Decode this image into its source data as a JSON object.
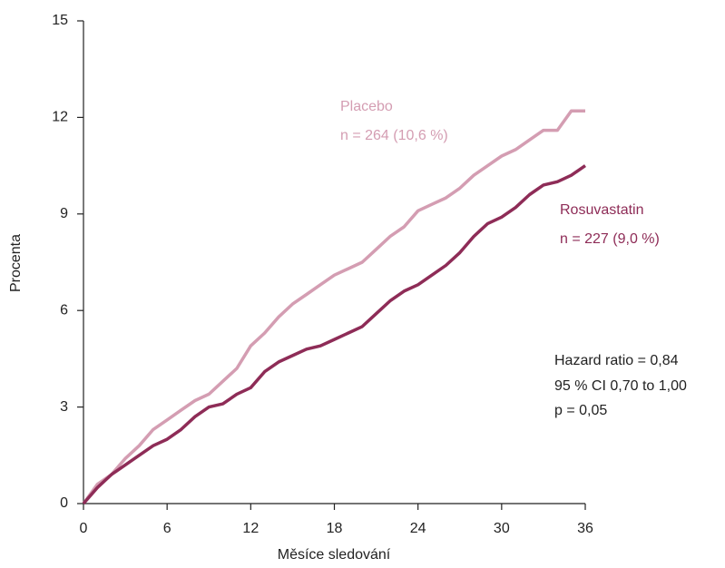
{
  "chart_data": {
    "type": "line",
    "x": [
      0,
      1,
      2,
      3,
      4,
      5,
      6,
      7,
      8,
      9,
      10,
      11,
      12,
      13,
      14,
      15,
      16,
      17,
      18,
      19,
      20,
      21,
      22,
      23,
      24,
      25,
      26,
      27,
      28,
      29,
      30,
      31,
      32,
      33,
      34,
      35,
      36
    ],
    "series": [
      {
        "name": "Placebo",
        "label": "n = 264 (10,6 %)",
        "color": "#d49db2",
        "values": [
          0,
          0.6,
          0.9,
          1.4,
          1.8,
          2.3,
          2.6,
          2.9,
          3.2,
          3.4,
          3.8,
          4.2,
          4.9,
          5.3,
          5.8,
          6.2,
          6.5,
          6.8,
          7.1,
          7.3,
          7.5,
          7.9,
          8.3,
          8.6,
          9.1,
          9.3,
          9.5,
          9.8,
          10.2,
          10.5,
          10.8,
          11.0,
          11.3,
          11.6,
          11.6,
          12.2,
          12.2
        ]
      },
      {
        "name": "Rosuvastatin",
        "label": "n = 227 (9,0 %)",
        "color": "#8e2c57",
        "values": [
          0,
          0.5,
          0.9,
          1.2,
          1.5,
          1.8,
          2.0,
          2.3,
          2.7,
          3.0,
          3.1,
          3.4,
          3.6,
          4.1,
          4.4,
          4.6,
          4.8,
          4.9,
          5.1,
          5.3,
          5.5,
          5.9,
          6.3,
          6.6,
          6.8,
          7.1,
          7.4,
          7.8,
          8.3,
          8.7,
          8.9,
          9.2,
          9.6,
          9.9,
          10.0,
          10.2,
          10.5
        ]
      }
    ],
    "xlabel": "Měsíce sledování",
    "ylabel": "Procenta",
    "xlim": [
      0,
      36
    ],
    "xticks": [
      0,
      6,
      12,
      18,
      24,
      30,
      36
    ],
    "ylim": [
      0,
      15
    ],
    "yticks": [
      0,
      3,
      6,
      9,
      12,
      15
    ],
    "grid": false,
    "annotations": [
      "Hazard ratio = 0,84",
      "95 % CI 0,70 to 1,00",
      "p = 0,05"
    ]
  }
}
